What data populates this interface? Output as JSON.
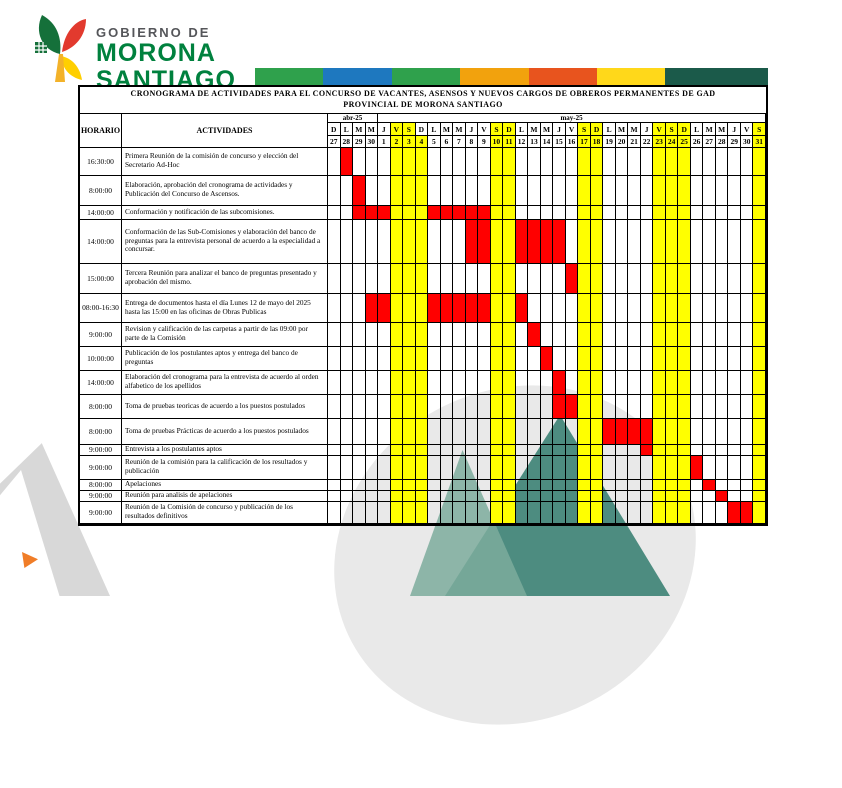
{
  "logo": {
    "line1": "GOBIERNO DE",
    "line2": "MORONA",
    "line3": "SANTIAGO",
    "icon": "plant-leaves-icon",
    "bar_segments": [
      "#2fa14c",
      "#1e78bf",
      "#2fa14c",
      "#f2a20d",
      "#e8541e",
      "#ffd81a",
      "#1b5a4a"
    ]
  },
  "colors": {
    "scheduled": "#ff0000",
    "nonworking": "#ffff00",
    "brand_green": "#00813e",
    "grid_line": "#000000"
  },
  "title": "CRONOGRAMA DE ACTIVIDADES PARA EL CONCURSO DE VACANTES, ASENSOS Y NUEVOS CARGOS DE OBREROS PERMANENTES DE GAD PROVINCIAL DE MORONA SANTIAGO",
  "chart_data": {
    "type": "table",
    "subtype": "gantt-schedule",
    "legend_semantics": {
      "red": "actividad programada",
      "yellow": "fin de semana / feriado"
    },
    "header": {
      "horario": "HORARIO",
      "actividades": "ACTIVIDADES"
    },
    "months": [
      {
        "label": "abr-25",
        "span": 4
      },
      {
        "label": "may-25",
        "span": 31
      }
    ],
    "columns": [
      {
        "id": "a27",
        "letter": "D",
        "number": "27",
        "letter_yellow": false,
        "number_yellow": false,
        "body_yellow": false
      },
      {
        "id": "a28",
        "letter": "L",
        "number": "28",
        "letter_yellow": false,
        "number_yellow": false,
        "body_yellow": false
      },
      {
        "id": "a29",
        "letter": "M",
        "number": "29",
        "letter_yellow": false,
        "number_yellow": false,
        "body_yellow": false
      },
      {
        "id": "a30",
        "letter": "M",
        "number": "30",
        "letter_yellow": false,
        "number_yellow": false,
        "body_yellow": false
      },
      {
        "id": "m1",
        "letter": "J",
        "number": "1",
        "letter_yellow": false,
        "number_yellow": false,
        "body_yellow": false
      },
      {
        "id": "m2",
        "letter": "V",
        "number": "2",
        "letter_yellow": true,
        "number_yellow": true,
        "body_yellow": true
      },
      {
        "id": "m3",
        "letter": "S",
        "number": "3",
        "letter_yellow": true,
        "number_yellow": true,
        "body_yellow": true
      },
      {
        "id": "m4",
        "letter": "D",
        "number": "4",
        "letter_yellow": false,
        "number_yellow": true,
        "body_yellow": true
      },
      {
        "id": "m5",
        "letter": "L",
        "number": "5",
        "letter_yellow": false,
        "number_yellow": false,
        "body_yellow": false
      },
      {
        "id": "m6",
        "letter": "M",
        "number": "6",
        "letter_yellow": false,
        "number_yellow": false,
        "body_yellow": false
      },
      {
        "id": "m7",
        "letter": "M",
        "number": "7",
        "letter_yellow": false,
        "number_yellow": false,
        "body_yellow": false
      },
      {
        "id": "m8",
        "letter": "J",
        "number": "8",
        "letter_yellow": false,
        "number_yellow": false,
        "body_yellow": false
      },
      {
        "id": "m9",
        "letter": "V",
        "number": "9",
        "letter_yellow": false,
        "number_yellow": false,
        "body_yellow": false
      },
      {
        "id": "m10",
        "letter": "S",
        "number": "10",
        "letter_yellow": true,
        "number_yellow": true,
        "body_yellow": true
      },
      {
        "id": "m11",
        "letter": "D",
        "number": "11",
        "letter_yellow": true,
        "number_yellow": true,
        "body_yellow": true
      },
      {
        "id": "m12",
        "letter": "L",
        "number": "12",
        "letter_yellow": false,
        "number_yellow": false,
        "body_yellow": false
      },
      {
        "id": "m13",
        "letter": "M",
        "number": "13",
        "letter_yellow": false,
        "number_yellow": false,
        "body_yellow": false
      },
      {
        "id": "m14",
        "letter": "M",
        "number": "14",
        "letter_yellow": false,
        "number_yellow": false,
        "body_yellow": false
      },
      {
        "id": "m15",
        "letter": "J",
        "number": "15",
        "letter_yellow": false,
        "number_yellow": false,
        "body_yellow": false
      },
      {
        "id": "m16",
        "letter": "V",
        "number": "16",
        "letter_yellow": false,
        "number_yellow": false,
        "body_yellow": false
      },
      {
        "id": "m17",
        "letter": "S",
        "number": "17",
        "letter_yellow": true,
        "number_yellow": true,
        "body_yellow": true
      },
      {
        "id": "m18",
        "letter": "D",
        "number": "18",
        "letter_yellow": true,
        "number_yellow": true,
        "body_yellow": true
      },
      {
        "id": "m19",
        "letter": "L",
        "number": "19",
        "letter_yellow": false,
        "number_yellow": false,
        "body_yellow": false
      },
      {
        "id": "m20",
        "letter": "M",
        "number": "20",
        "letter_yellow": false,
        "number_yellow": false,
        "body_yellow": false
      },
      {
        "id": "m21",
        "letter": "M",
        "number": "21",
        "letter_yellow": false,
        "number_yellow": false,
        "body_yellow": false
      },
      {
        "id": "m22",
        "letter": "J",
        "number": "22",
        "letter_yellow": false,
        "number_yellow": false,
        "body_yellow": false
      },
      {
        "id": "m23",
        "letter": "V",
        "number": "23",
        "letter_yellow": true,
        "number_yellow": true,
        "body_yellow": true
      },
      {
        "id": "m24",
        "letter": "S",
        "number": "24",
        "letter_yellow": true,
        "number_yellow": true,
        "body_yellow": true
      },
      {
        "id": "m25",
        "letter": "D",
        "number": "25",
        "letter_yellow": true,
        "number_yellow": true,
        "body_yellow": true
      },
      {
        "id": "m26",
        "letter": "L",
        "number": "26",
        "letter_yellow": false,
        "number_yellow": false,
        "body_yellow": false
      },
      {
        "id": "m27",
        "letter": "M",
        "number": "27",
        "letter_yellow": false,
        "number_yellow": false,
        "body_yellow": false
      },
      {
        "id": "m28",
        "letter": "M",
        "number": "28",
        "letter_yellow": false,
        "number_yellow": false,
        "body_yellow": false
      },
      {
        "id": "m29",
        "letter": "J",
        "number": "29",
        "letter_yellow": false,
        "number_yellow": false,
        "body_yellow": false
      },
      {
        "id": "m30",
        "letter": "V",
        "number": "30",
        "letter_yellow": false,
        "number_yellow": false,
        "body_yellow": false
      },
      {
        "id": "m31",
        "letter": "S",
        "number": "31",
        "letter_yellow": true,
        "number_yellow": true,
        "body_yellow": true
      }
    ],
    "rows": [
      {
        "horario": "16:30:00",
        "actividad": "Primera Reunión de la comisión de concurso y elección del Secretario Ad-Hoc",
        "red": [
          "a28"
        ]
      },
      {
        "horario": "8:00:00",
        "actividad": "Elaboración, aprobación del cronograma de actividades y Publicación del Concurso de Ascensos.",
        "red": [
          "a29"
        ]
      },
      {
        "horario": "14:00:00",
        "actividad": "Conformación y notificación de las subcomisiones.",
        "red": [
          "a29",
          "a30",
          "m1",
          "m5",
          "m6",
          "m7",
          "m8",
          "m9"
        ]
      },
      {
        "horario": "14:00:00",
        "actividad": "Conformación de las Sub-Comisiones y elaboración del banco de preguntas para la entrevista personal de acuerdo a la especialidad a concursar.",
        "red": [
          "m8",
          "m9",
          "m12",
          "m13",
          "m14",
          "m15"
        ]
      },
      {
        "horario": "15:00:00",
        "actividad": "Tercera Reunión para analizar el banco de preguntas presentado y aprobación del mismo.",
        "red": [
          "m16"
        ]
      },
      {
        "horario": "08:00-16:30",
        "actividad": "Entrega de documentos hasta el día Lunes 12 de mayo del 2025 hasta las 15:00 en las oficinas de Obras Publicas",
        "red": [
          "a30",
          "m1",
          "m5",
          "m6",
          "m7",
          "m8",
          "m9",
          "m12"
        ]
      },
      {
        "horario": "9:00:00",
        "actividad": "Revision y calificación de las carpetas a partir de las 09:00 por parte de la Comisión",
        "red": [
          "m13"
        ]
      },
      {
        "horario": "10:00:00",
        "actividad": "Publicación de los postulantes aptos y entrega del banco de preguntas",
        "red": [
          "m14"
        ]
      },
      {
        "horario": "14:00:00",
        "actividad": "Elaboración del cronograma para la entrevista de acuerdo al orden alfabetico de los apellidos",
        "red": [
          "m15"
        ]
      },
      {
        "horario": "8:00:00",
        "actividad": "Toma de pruebas teoricas de acuerdo a los puestos postulados",
        "red": [
          "m15",
          "m16"
        ]
      },
      {
        "horario": "8:00:00",
        "actividad": "Toma de pruebas Prácticas de acuerdo a los puestos postulados",
        "red": [
          "m19",
          "m20",
          "m21",
          "m22"
        ]
      },
      {
        "horario": "9:00:00",
        "actividad": "Entrevista a los postulantes aptos",
        "red": [
          "m22"
        ]
      },
      {
        "horario": "9:00:00",
        "actividad": "Reunión de la comisión para la calificación de los resultados y publicación",
        "red": [
          "m26"
        ]
      },
      {
        "horario": "8:00:00",
        "actividad": "Apelaciones",
        "red": [
          "m27"
        ]
      },
      {
        "horario": "9:00:00",
        "actividad": "Reunión para analisis de apelaciones",
        "red": [
          "m28"
        ]
      },
      {
        "horario": "9:00:00",
        "actividad": "Reunión de la Comisión de concurso y publicación de los resultados definitivos",
        "red": [
          "m29",
          "m30"
        ]
      }
    ]
  }
}
